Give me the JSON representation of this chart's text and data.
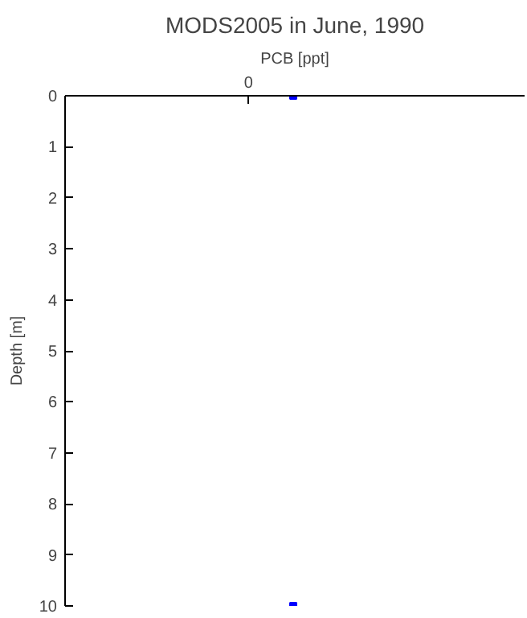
{
  "chart_data": {
    "type": "scatter",
    "title": "MODS2005 in June, 1990",
    "xlabel": "PCB [ppt]",
    "ylabel": "Depth [m]",
    "categories": [
      null
    ],
    "series": [
      {
        "color": "#0000ff",
        "values": [
          0
        ]
      },
      {
        "color": "#0000ff",
        "values": [
          10
        ]
      }
    ],
    "annotations": [
      "0"
    ],
    "ylim": [
      10,
      0
    ],
    "yticks": [
      0,
      1,
      2,
      3,
      4,
      5,
      6,
      7,
      8,
      9,
      10
    ],
    "grid": false,
    "marker": "square"
  }
}
